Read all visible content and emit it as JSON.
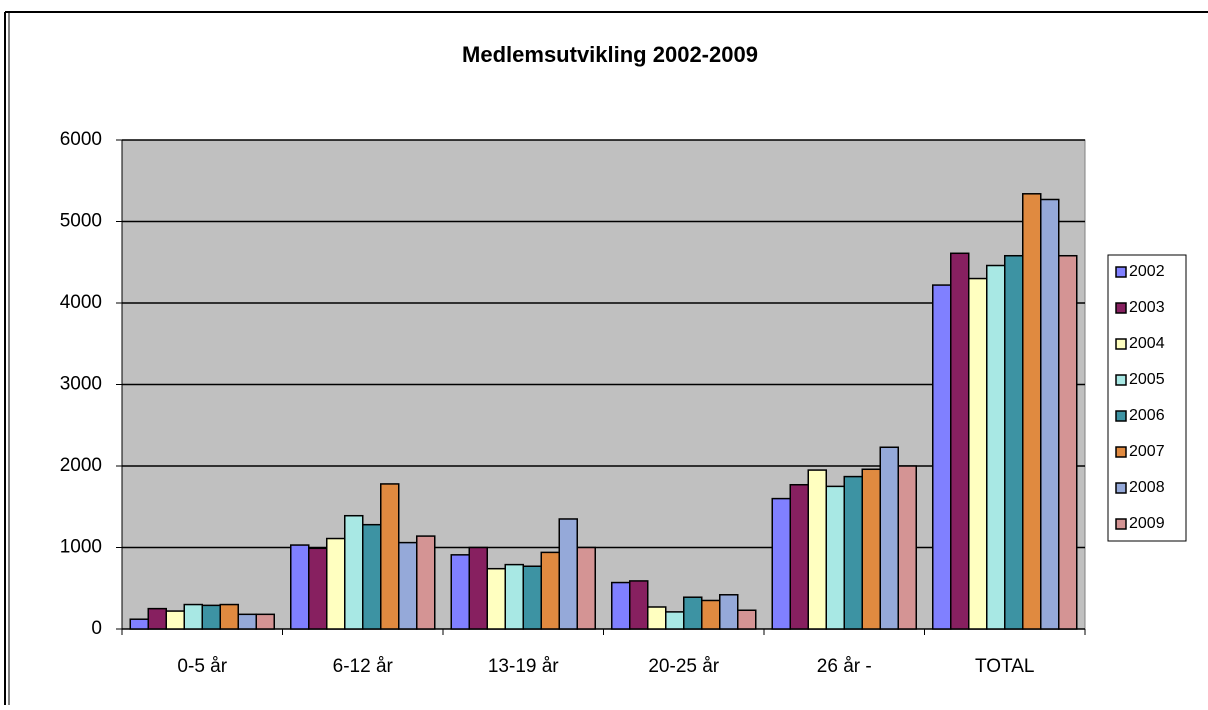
{
  "chart_data": {
    "type": "bar",
    "title": "Medlemsutvikling 2002-2009",
    "categories": [
      "0-5 år",
      "6-12 år",
      "13-19 år",
      "20-25 år",
      "26 år -",
      "TOTAL"
    ],
    "series": [
      {
        "name": "2002",
        "color": "#8080ff",
        "values": [
          120,
          1030,
          910,
          570,
          1600,
          4220
        ]
      },
      {
        "name": "2003",
        "color": "#872060",
        "values": [
          250,
          990,
          1000,
          590,
          1770,
          4610
        ]
      },
      {
        "name": "2004",
        "color": "#ffffc0",
        "values": [
          220,
          1110,
          740,
          270,
          1950,
          4300
        ]
      },
      {
        "name": "2005",
        "color": "#a8e8e4",
        "values": [
          300,
          1390,
          790,
          210,
          1750,
          4460
        ]
      },
      {
        "name": "2006",
        "color": "#3d93a3",
        "values": [
          290,
          1280,
          770,
          390,
          1870,
          4580
        ]
      },
      {
        "name": "2007",
        "color": "#e08a40",
        "values": [
          300,
          1780,
          940,
          350,
          1960,
          5340
        ]
      },
      {
        "name": "2008",
        "color": "#95a9d9",
        "values": [
          180,
          1060,
          1350,
          420,
          2230,
          5270
        ]
      },
      {
        "name": "2009",
        "color": "#d49494",
        "values": [
          180,
          1140,
          1000,
          230,
          2000,
          4580
        ]
      }
    ],
    "ylim": [
      0,
      6000
    ],
    "yticks": [
      0,
      1000,
      2000,
      3000,
      4000,
      5000,
      6000
    ],
    "grid": true,
    "legend": "right"
  }
}
